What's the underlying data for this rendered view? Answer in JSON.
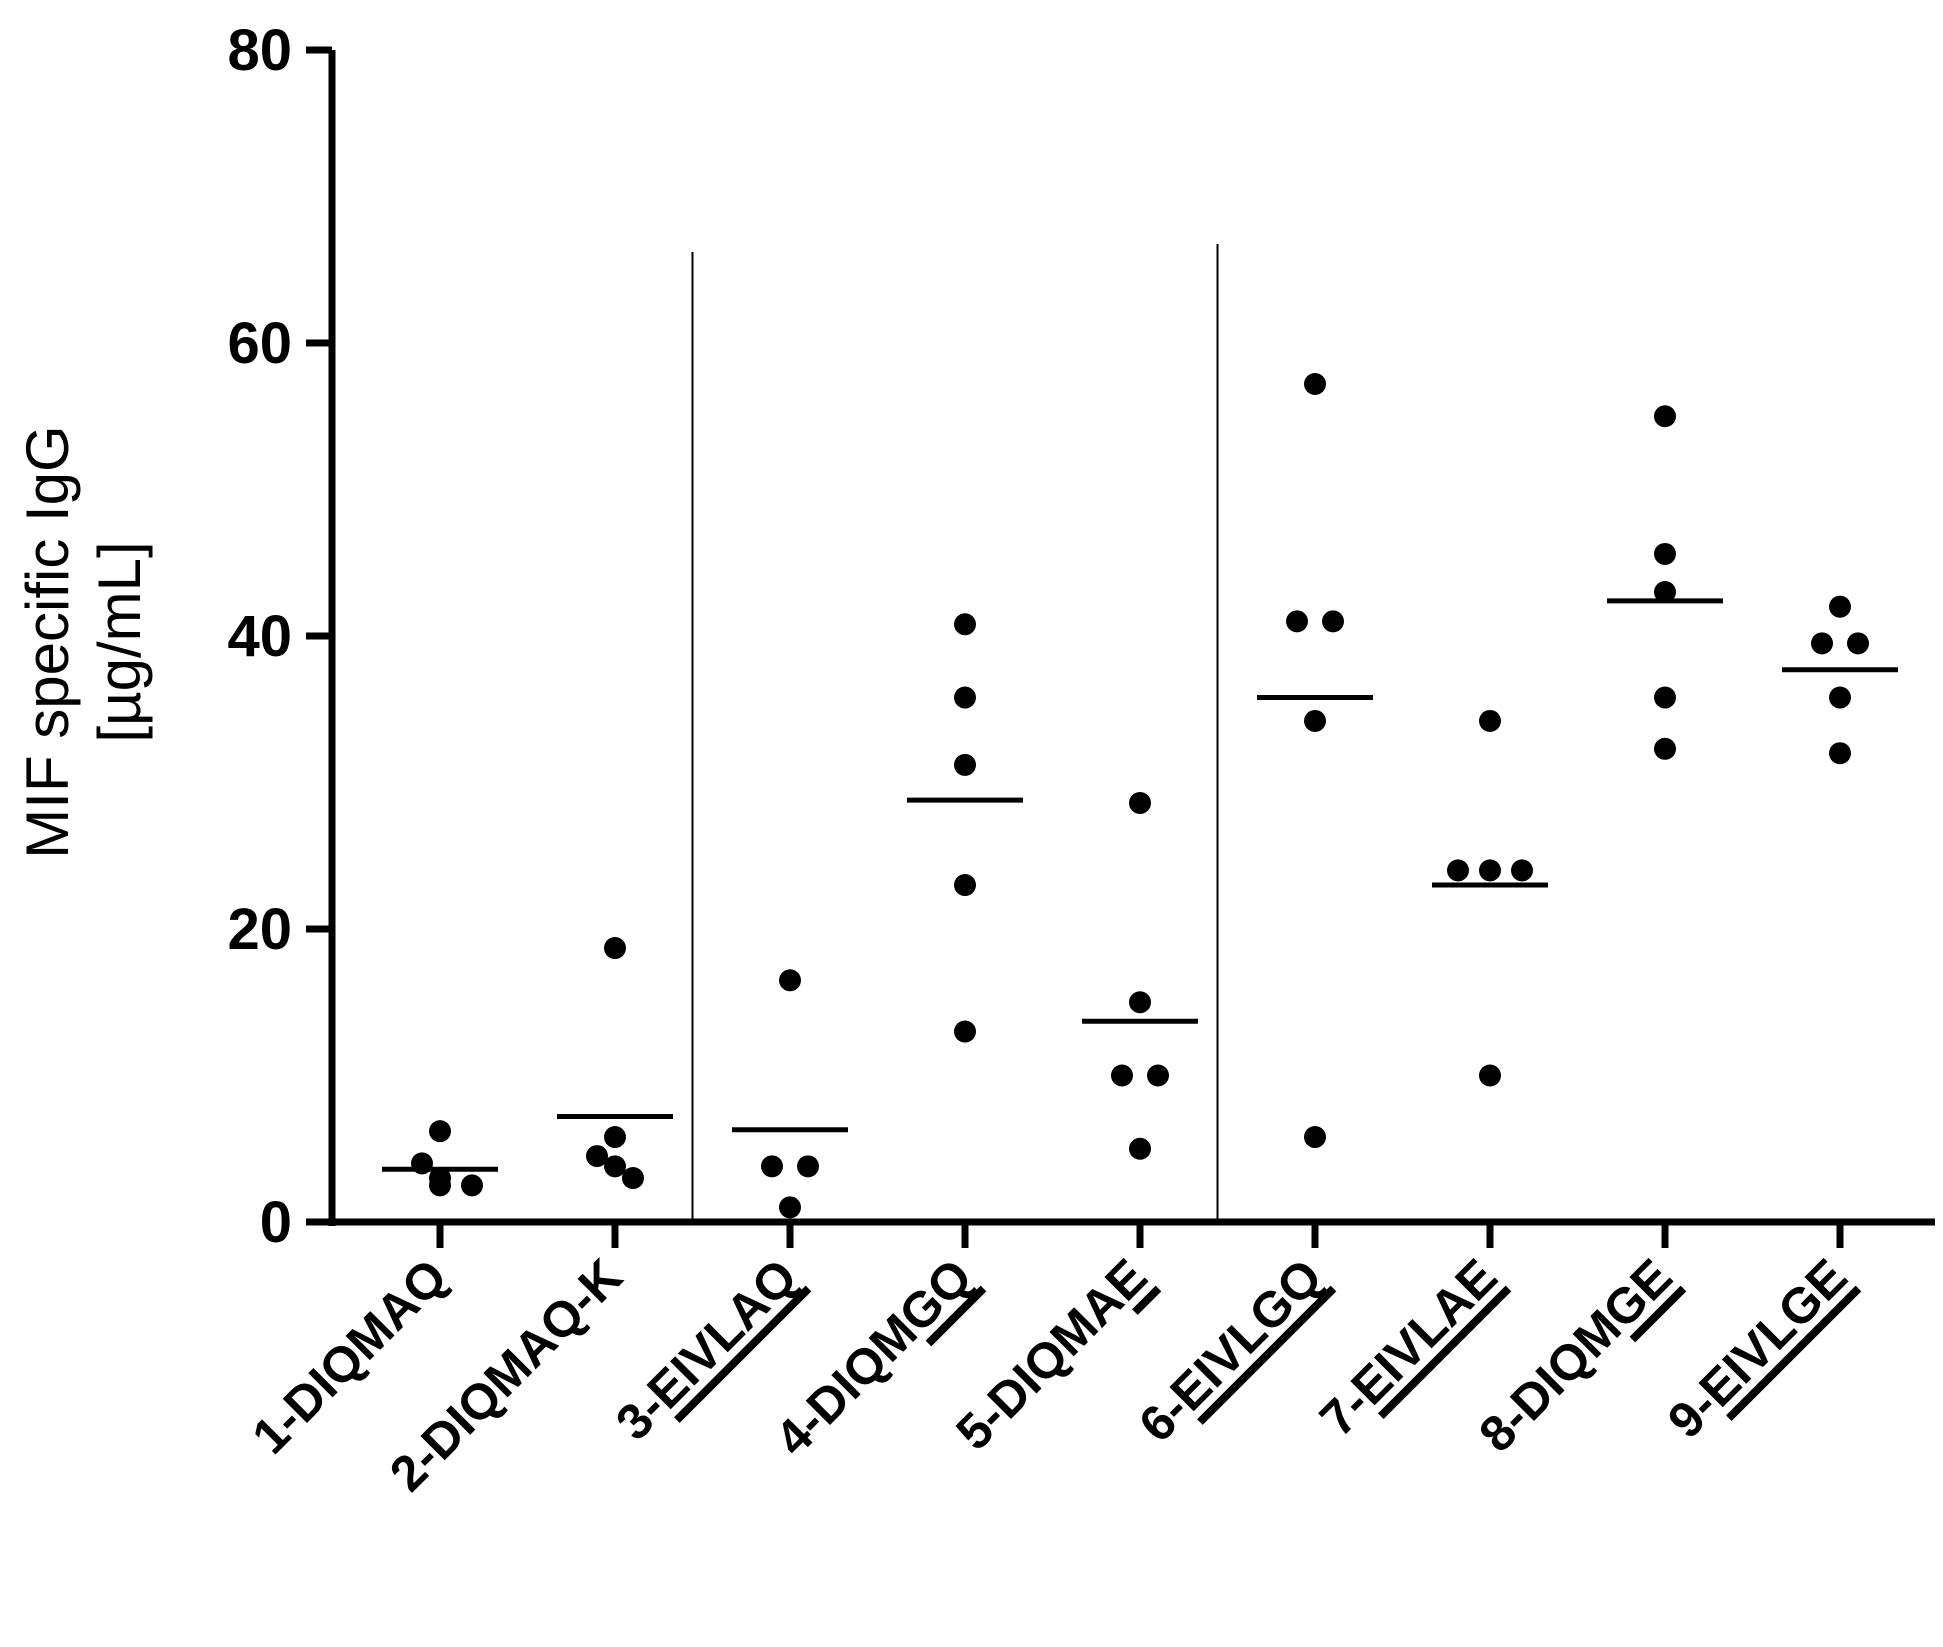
{
  "chart_data": {
    "type": "scatter",
    "title": "",
    "xlabel": "",
    "ylabel": [
      "MIF specific IgG",
      "[µg/mL]"
    ],
    "ylim": [
      0,
      80
    ],
    "yticks": [
      0,
      20,
      40,
      60,
      80
    ],
    "categories": [
      "1-DIQMAQ",
      "2-DIQMAQ-K",
      "3-EIVLAQ",
      "4-DIQMGQ",
      "5-DIQMAE",
      "6-EIVLGQ",
      "7-EIVLAE",
      "8-DIQMGE",
      "9-EIVLGE"
    ],
    "underlined_segments": [
      "",
      "",
      "EIVLAQ",
      "GQ",
      "E",
      "EIVLGQ",
      "EIVLAE",
      "GE",
      "EIVLGE"
    ],
    "group_separators_after": [
      "2-DIQMAQ-K",
      "5-DIQMAE"
    ],
    "series": [
      {
        "name": "1-DIQMAQ",
        "values": [
          6.2,
          4.0,
          3.0,
          2.5,
          2.5
        ],
        "mean": 3.6
      },
      {
        "name": "2-DIQMAQ-K",
        "values": [
          18.7,
          5.8,
          4.5,
          3.8,
          3.0
        ],
        "mean": 7.2
      },
      {
        "name": "3-EIVLAQ",
        "values": [
          16.5,
          3.8,
          3.8,
          1.0
        ],
        "mean": 6.3
      },
      {
        "name": "4-DIQMGQ",
        "values": [
          40.8,
          35.8,
          31.2,
          23.0,
          13.0
        ],
        "mean": 28.8
      },
      {
        "name": "5-DIQMAE",
        "values": [
          28.6,
          15.0,
          10.0,
          10.0,
          5.0
        ],
        "mean": 13.7
      },
      {
        "name": "6-EIVLGQ",
        "values": [
          57.2,
          41.0,
          41.0,
          34.2,
          5.8
        ],
        "mean": 35.8
      },
      {
        "name": "7-EIVLAE",
        "values": [
          34.2,
          24.0,
          24.0,
          24.0,
          10.0
        ],
        "mean": 23.0
      },
      {
        "name": "8-DIQMGE",
        "values": [
          55.0,
          45.6,
          43.0,
          35.8,
          32.3
        ],
        "mean": 42.4
      },
      {
        "name": "9-EIVLGE",
        "values": [
          42.0,
          39.5,
          39.5,
          35.8,
          32.0
        ],
        "mean": 37.7
      }
    ]
  }
}
